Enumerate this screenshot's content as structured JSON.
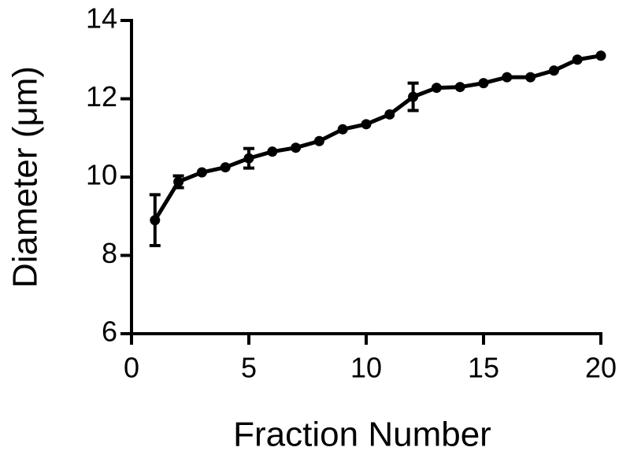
{
  "chart_data": {
    "type": "line",
    "x_label": "Fraction Number",
    "y_label": "Diameter (μm)",
    "x": [
      1,
      2,
      3,
      4,
      5,
      6,
      7,
      8,
      9,
      10,
      11,
      12,
      13,
      14,
      15,
      16,
      17,
      18,
      19,
      20
    ],
    "series": [
      {
        "color": "#000000",
        "values": [
          8.9,
          9.88,
          10.12,
          10.25,
          10.48,
          10.65,
          10.75,
          10.92,
          11.22,
          11.35,
          11.6,
          12.05,
          12.28,
          12.3,
          12.4,
          12.55,
          12.55,
          12.72,
          13.0,
          13.1
        ],
        "errors": [
          0.65,
          0.15,
          null,
          null,
          0.25,
          null,
          null,
          null,
          null,
          null,
          null,
          0.35,
          null,
          null,
          null,
          null,
          null,
          null,
          null,
          null
        ]
      }
    ],
    "xlim": [
      0,
      20
    ],
    "xticks": [
      0,
      5,
      10,
      15,
      20
    ],
    "ylim": [
      6,
      14
    ],
    "yticks": [
      6,
      8,
      10,
      12,
      14
    ]
  }
}
